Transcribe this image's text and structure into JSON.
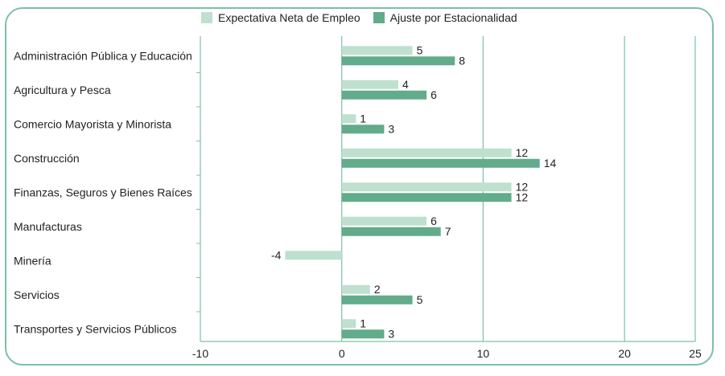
{
  "legend": {
    "expectativa_label": "Expectativa Neta de Empleo",
    "ajuste_label": "Ajuste por Estacionalidad"
  },
  "chart_data": {
    "type": "bar",
    "orientation": "horizontal",
    "categories": [
      "Administración Pública y Educación",
      "Agricultura y Pesca",
      "Comercio Mayorista y Minorista",
      "Construcción",
      "Finanzas, Seguros y Bienes Raíces",
      "Manufacturas",
      "Minería",
      "Servicios",
      "Transportes y Servicios Públicos"
    ],
    "series": [
      {
        "name": "Expectativa Neta de Empleo",
        "color": "#bfe0cf",
        "values": [
          5,
          4,
          1,
          12,
          12,
          6,
          -4,
          2,
          1
        ]
      },
      {
        "name": "Ajuste por Estacionalidad",
        "color": "#62ab8b",
        "values": [
          8,
          6,
          3,
          14,
          12,
          7,
          null,
          5,
          3
        ]
      }
    ],
    "xlim": [
      -10,
      25
    ],
    "xticks": [
      -10,
      0,
      10,
      20,
      25
    ],
    "grid": true,
    "legend_position": "top-center",
    "axis_color": "#7cc1a4"
  }
}
